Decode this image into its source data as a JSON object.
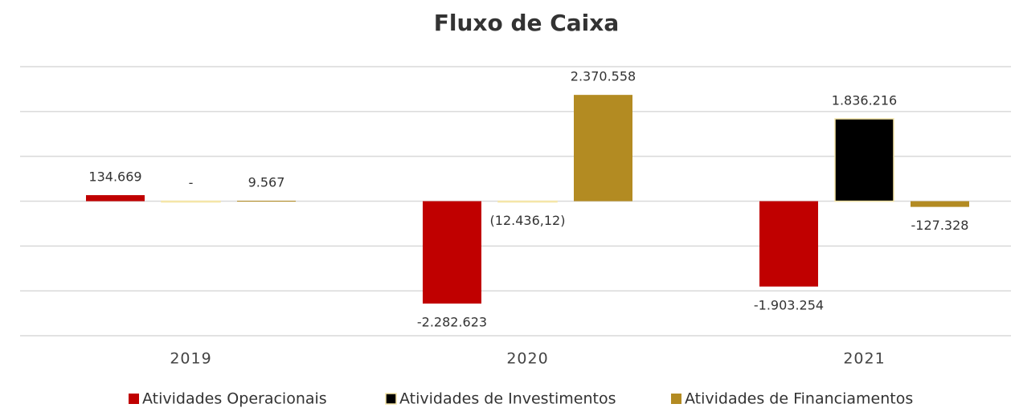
{
  "chart_data": {
    "type": "bar",
    "title": "Fluxo de Caixa",
    "categories": [
      "2019",
      "2020",
      "2021"
    ],
    "series": [
      {
        "name": "Atividades Operacionais",
        "color": "#c00000",
        "values": [
          134669,
          -2282623,
          -1903254
        ],
        "value_labels": [
          "134.669",
          "-2.282.623",
          "-1.903.254"
        ]
      },
      {
        "name": "Atividades de Investimentos",
        "color": "#000000",
        "values": [
          0,
          -12436.12,
          1836216
        ],
        "value_labels": [
          "-",
          "(12.436,12)",
          "1.836.216"
        ]
      },
      {
        "name": "Atividades de Financiamentos",
        "color": "#b38b22",
        "values": [
          9567,
          2370558,
          -127328
        ],
        "value_labels": [
          "9.567",
          "2.370.558",
          "-127.328"
        ]
      }
    ],
    "ylim": [
      -3000000,
      3000000
    ],
    "yticks": [
      -3000000,
      -2000000,
      -1000000,
      0,
      1000000,
      2000000,
      3000000
    ],
    "grid": true,
    "legend": "bottom"
  }
}
